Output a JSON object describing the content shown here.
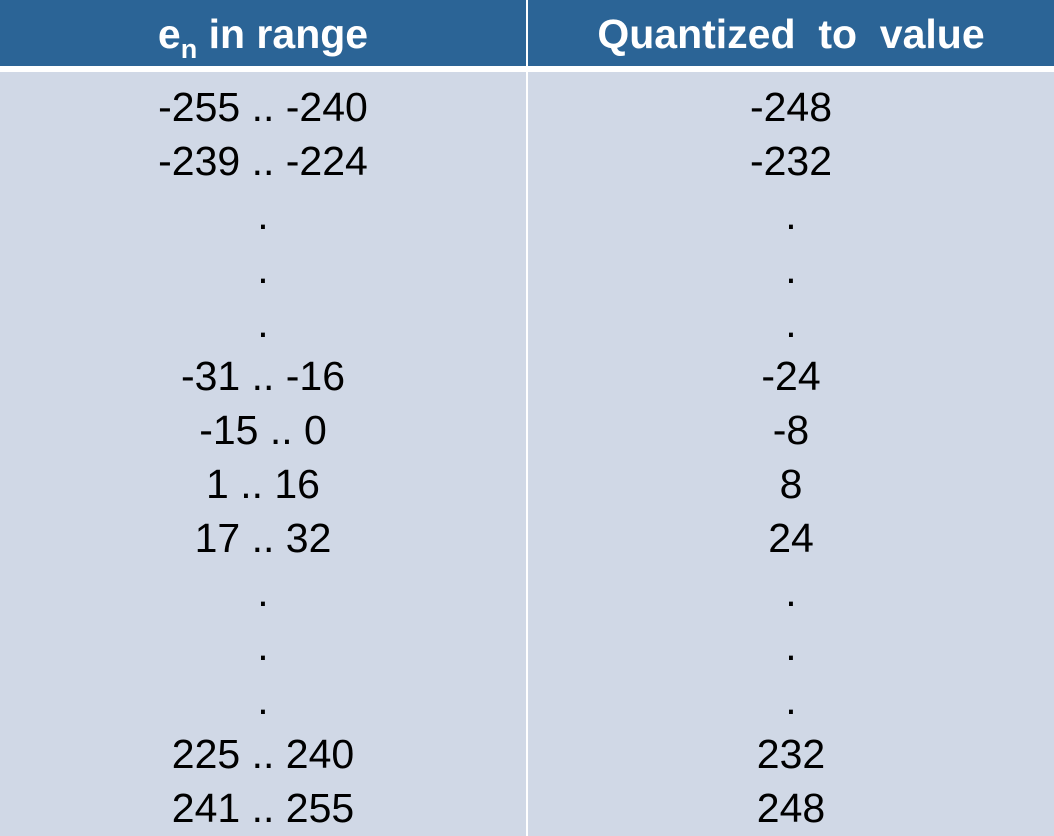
{
  "header": {
    "col1_main": "e",
    "col1_sub": "n",
    "col1_rest": " in range",
    "col2": "Quantized  to  value"
  },
  "rows": [
    {
      "range": "-255 .. -240",
      "value": "-248"
    },
    {
      "range": "-239 .. -224",
      "value": "-232"
    },
    {
      "range": ".",
      "value": "."
    },
    {
      "range": ".",
      "value": "."
    },
    {
      "range": ".",
      "value": "."
    },
    {
      "range": "-31 .. -16",
      "value": "-24"
    },
    {
      "range": "-15 .. 0",
      "value": "-8"
    },
    {
      "range": "1 .. 16",
      "value": "8"
    },
    {
      "range": "17 .. 32",
      "value": "24"
    },
    {
      "range": ".",
      "value": "."
    },
    {
      "range": ".",
      "value": "."
    },
    {
      "range": ".",
      "value": "."
    },
    {
      "range": "225 .. 240",
      "value": "232"
    },
    {
      "range": "241 .. 255",
      "value": "248"
    }
  ]
}
